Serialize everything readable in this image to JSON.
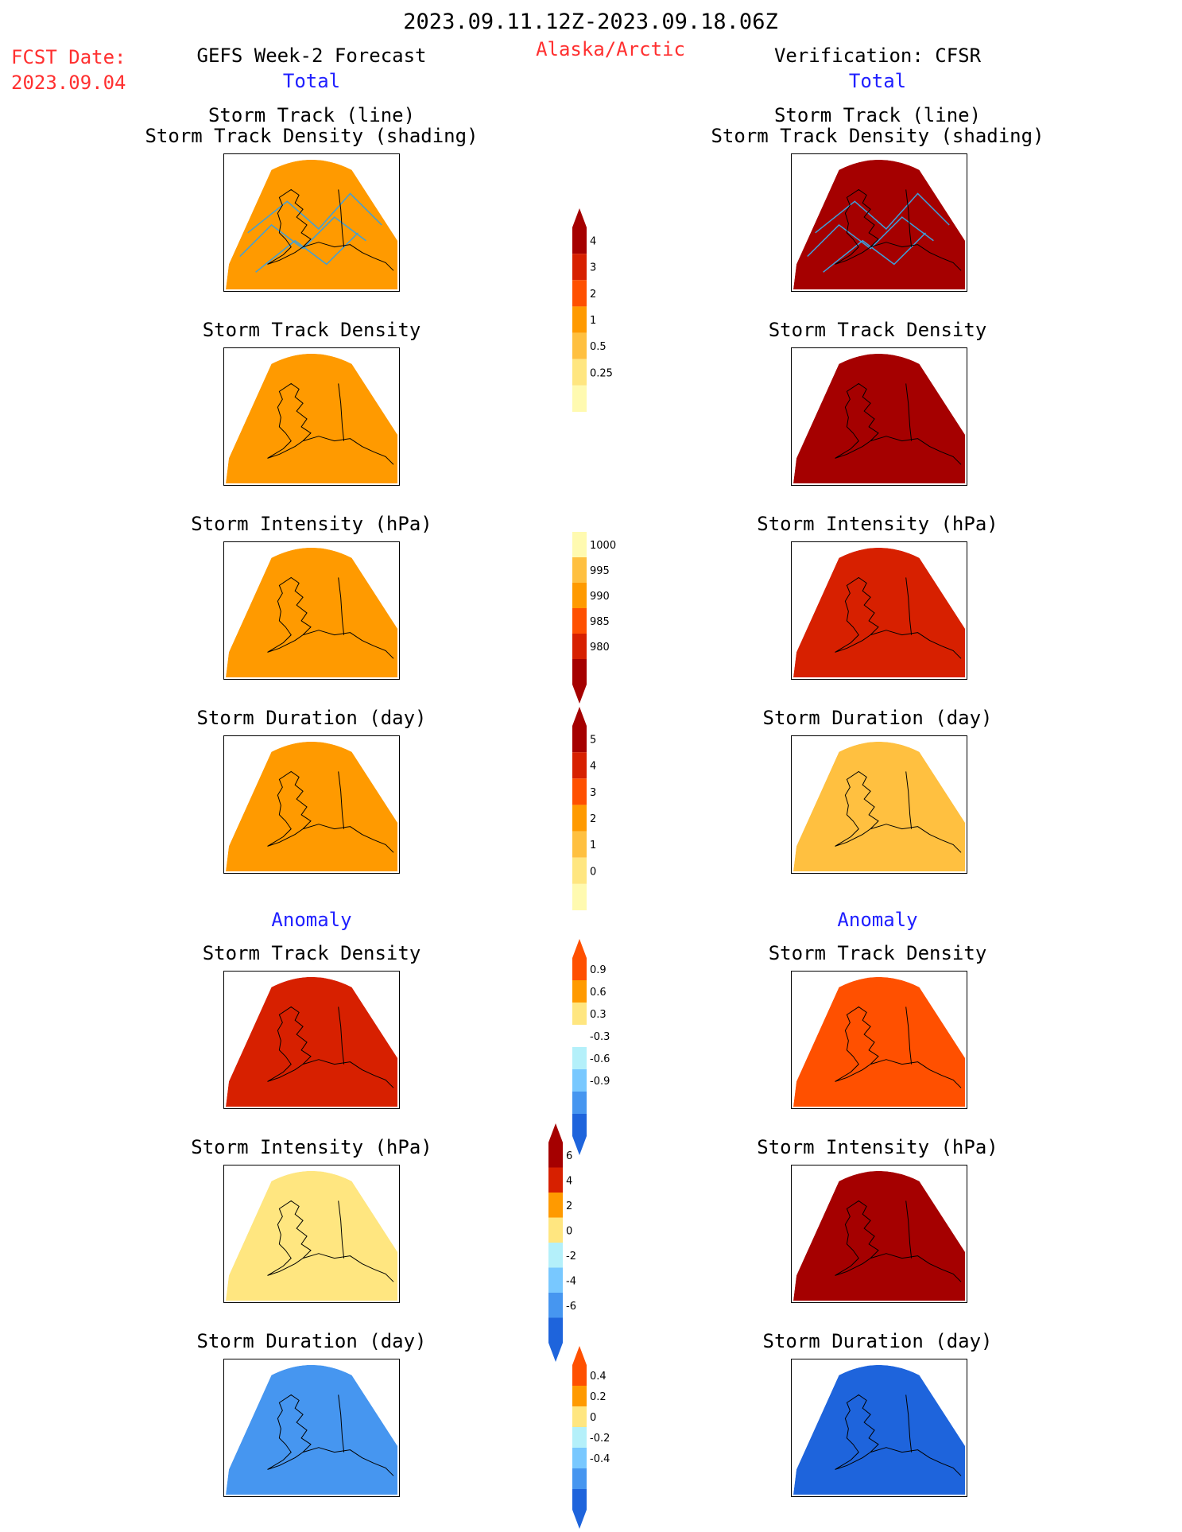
{
  "header": {
    "date_range": "2023.09.11.12Z-2023.09.18.06Z",
    "fcst_label": "FCST Date:",
    "fcst_date": "2023.09.04",
    "left_title": "GEFS Week-2 Forecast",
    "region": "Alaska/Arctic",
    "right_title": "Verification: CFSR",
    "total_left": "Total",
    "total_right": "Total",
    "anomaly_left": "Anomaly",
    "anomaly_right": "Anomaly"
  },
  "panel_titles": {
    "track_line": "Storm Track (line)",
    "track_shading": "Storm Track Density (shading)",
    "density": "Storm Track Density",
    "intensity": "Storm Intensity (hPa)",
    "duration": "Storm Duration (day)"
  },
  "colorbars": {
    "total_density": [
      "4",
      "3",
      "2",
      "1",
      "0.5",
      "0.25"
    ],
    "total_intensity": [
      "1000",
      "995",
      "990",
      "985",
      "980"
    ],
    "total_duration": [
      "5",
      "4",
      "3",
      "2",
      "1",
      "0"
    ],
    "anom_density": [
      "0.9",
      "0.6",
      "0.3",
      "-0.3",
      "-0.6",
      "-0.9"
    ],
    "anom_intensity": [
      "6",
      "4",
      "2",
      "0",
      "-2",
      "-4",
      "-6"
    ],
    "anom_duration": [
      "0.4",
      "0.2",
      "0",
      "-0.2",
      "-0.4"
    ]
  },
  "colors": {
    "dark_red": "#a50000",
    "red": "#d72000",
    "orange_red": "#ff5000",
    "orange": "#ff9a00",
    "light_orange": "#ffc040",
    "yellow": "#ffe680",
    "pale_yellow": "#fffab0",
    "white": "#ffffff",
    "pale_blue": "#b4f0fa",
    "light_blue": "#78c8ff",
    "mid_blue": "#4696f0",
    "blue": "#1e64dc",
    "track_line": "#3ca0dc",
    "title_red": "#ff3030",
    "title_blue": "#2020ff"
  },
  "panels": {
    "forecast_total_track": "orange",
    "forecast_total_density": "orange",
    "forecast_total_intensity": "orange",
    "forecast_total_duration": "orange",
    "verify_total_track": "dark_red",
    "verify_total_density": "dark_red",
    "verify_total_intensity": "red",
    "verify_total_duration": "light_orange",
    "forecast_anom_density": "red",
    "forecast_anom_intensity": "yellow",
    "forecast_anom_duration": "mid_blue",
    "verify_anom_density": "orange_red",
    "verify_anom_intensity": "dark_red",
    "verify_anom_duration": "blue"
  }
}
